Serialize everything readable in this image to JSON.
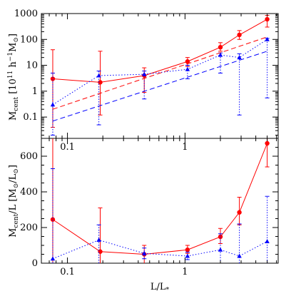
{
  "chart_data": [
    {
      "type": "line",
      "panel": "top",
      "ylabel_main": "M",
      "ylabel_sub": "cent",
      "ylabel_rest": " [10",
      "ylabel_exp": "11",
      "ylabel_rest2": " h",
      "ylabel_exp2": "−1",
      "ylabel_rest3": "M",
      "ylabel_sun": "⊙",
      "ylabel_close": "]",
      "x_scale": "log",
      "y_scale": "log",
      "xlim": [
        0.06,
        6.2
      ],
      "ylim": [
        0.015,
        1000
      ],
      "x_ticklabels": [
        {
          "value": 0.1,
          "label": "0.1"
        },
        {
          "value": 1,
          "label": "1"
        }
      ],
      "y_ticklabels": [
        {
          "value": 0.1,
          "label": "0.1"
        },
        {
          "value": 1,
          "label": "1"
        },
        {
          "value": 10,
          "label": "10"
        },
        {
          "value": 100,
          "label": "100"
        },
        {
          "value": 1000,
          "label": "1000"
        }
      ],
      "series": [
        {
          "marker": "circle",
          "line": "solid",
          "color": "#ff0000",
          "x": [
            0.075,
            0.19,
            0.45,
            1.05,
            2.0,
            2.9,
            5.0
          ],
          "y": [
            3.0,
            2.2,
            4.0,
            14,
            50,
            150,
            600
          ],
          "err_low": [
            0.04,
            0.12,
            0.9,
            9,
            35,
            100,
            300
          ],
          "err_high": [
            40,
            35,
            8,
            20,
            75,
            220,
            850
          ]
        },
        {
          "marker": "triangle",
          "line": "dotted",
          "color": "#0000ff",
          "x": [
            0.075,
            0.185,
            0.45,
            1.05,
            2.0,
            2.9,
            5.0
          ],
          "y": [
            0.3,
            4.0,
            4.5,
            7,
            25,
            20,
            100
          ],
          "err_low": [
            0.02,
            0.05,
            0.5,
            3,
            5,
            0.12,
            0.55
          ],
          "err_high": [
            5,
            6,
            6,
            10,
            30,
            28,
            110
          ]
        },
        {
          "line": "dashed",
          "color": "#ff0000",
          "x": [
            0.075,
            5.0
          ],
          "y": [
            0.2,
            125
          ]
        },
        {
          "line": "dashed",
          "color": "#0000ff",
          "x": [
            0.075,
            5.0
          ],
          "y": [
            0.07,
            35
          ]
        }
      ]
    },
    {
      "type": "line",
      "panel": "bottom",
      "xlabel": "L/L",
      "xlabel_sub": "*",
      "ylabel_main": "M",
      "ylabel_sub": "cent",
      "ylabel_rest": "/L [M",
      "ylabel_sun": "⊙",
      "ylabel_rest2": "/L",
      "ylabel_sun2": "⊙",
      "ylabel_close": "]",
      "x_scale": "log",
      "y_scale": "linear",
      "xlim": [
        0.06,
        6.2
      ],
      "ylim": [
        0,
        700
      ],
      "x_ticklabels": [
        {
          "value": 0.1,
          "label": "0.1"
        },
        {
          "value": 1,
          "label": "1"
        }
      ],
      "y_ticklabels": [
        {
          "value": 0,
          "label": "0"
        },
        {
          "value": 200,
          "label": "200"
        },
        {
          "value": 400,
          "label": "400"
        },
        {
          "value": 600,
          "label": "600"
        }
      ],
      "series": [
        {
          "marker": "circle",
          "line": "solid",
          "color": "#ff0000",
          "x": [
            0.075,
            0.19,
            0.45,
            1.05,
            2.0,
            2.9,
            5.0
          ],
          "y": [
            245,
            65,
            50,
            75,
            148,
            285,
            672
          ],
          "err_low": [
            0,
            0,
            0,
            55,
            110,
            215,
            540
          ],
          "err_high": [
            700,
            310,
            100,
            100,
            195,
            370,
            700
          ]
        },
        {
          "marker": "triangle",
          "line": "dotted",
          "color": "#0000ff",
          "x": [
            0.075,
            0.185,
            0.45,
            1.05,
            2.0,
            2.9,
            5.0
          ],
          "y": [
            25,
            130,
            55,
            40,
            75,
            40,
            122
          ],
          "err_low": [
            0,
            0,
            25,
            20,
            0,
            0,
            0
          ],
          "err_high": [
            530,
            215,
            85,
            62,
            165,
            220,
            375
          ]
        }
      ]
    }
  ]
}
